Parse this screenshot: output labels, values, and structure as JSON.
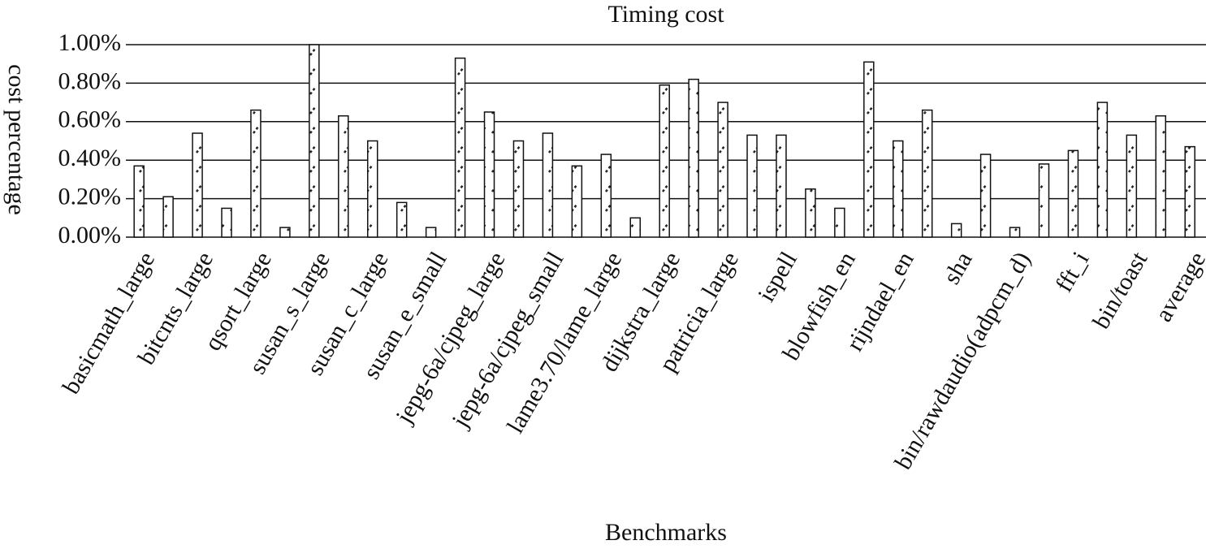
{
  "chart_data": {
    "type": "bar",
    "title": "Timing cost",
    "x_label": "Benchmarks",
    "y_label": "cost percentage",
    "categories": [
      "basicmath_large",
      null,
      "bitcnts_large",
      null,
      "qsort_large",
      null,
      "susan_s_large",
      null,
      "susan_c_large",
      null,
      "susan_e_small",
      null,
      "jepg-6a/cjpeg_large",
      null,
      "jepg-6a/cjpeg_small",
      null,
      "lame3.70/lame_large",
      null,
      "dijkstra_large",
      null,
      "patricia_large",
      null,
      "ispell",
      null,
      "blowfish_en",
      null,
      "rijndael_en",
      null,
      "sha",
      null,
      "bin/rawdaudio(adpcm_d)",
      null,
      "fft_i",
      null,
      "bin/toast",
      null,
      "average"
    ],
    "values": [
      0.37,
      0.21,
      0.54,
      0.15,
      0.66,
      0.05,
      1.0,
      0.63,
      0.5,
      0.18,
      0.05,
      0.93,
      0.65,
      0.5,
      0.54,
      0.37,
      0.43,
      0.1,
      0.79,
      0.82,
      0.7,
      0.53,
      0.53,
      0.25,
      0.15,
      0.91,
      0.5,
      0.66,
      0.07,
      0.43,
      0.05,
      0.38,
      0.45,
      0.7,
      0.53,
      0.63,
      0.47
    ],
    "color": "#ffffff",
    "ylim": [
      0,
      1
    ],
    "yticks": [
      {
        "value": 0,
        "label": "0.00%"
      },
      {
        "value": 0.2,
        "label": "0.20%"
      },
      {
        "value": 0.4,
        "label": "0.40%"
      },
      {
        "value": 0.6,
        "label": "0.60%"
      },
      {
        "value": 0.8,
        "label": "0.80%"
      },
      {
        "value": 1,
        "label": "1.00%"
      }
    ],
    "grid": true
  }
}
